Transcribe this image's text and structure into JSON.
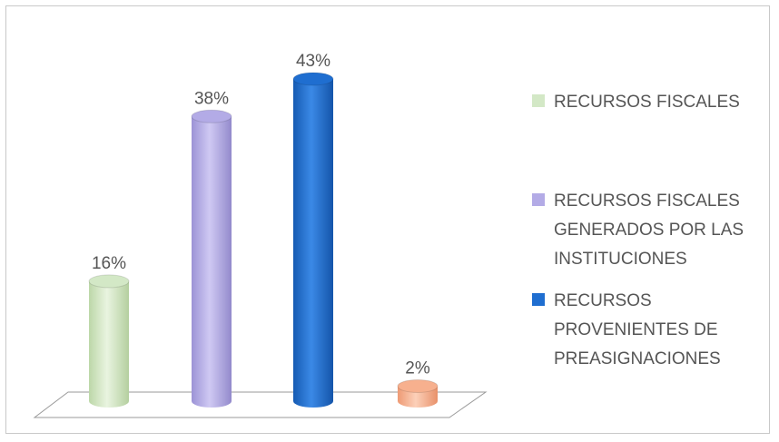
{
  "chart_data": {
    "type": "bar",
    "categories": [
      "RECURSOS FISCALES",
      "RECURSOS FISCALES GENERADOS POR LAS INSTITUCIONES",
      "RECURSOS PROVENIENTES DE PREASIGNACIONES",
      ""
    ],
    "values": [
      16,
      38,
      43,
      2
    ],
    "data_labels": [
      "16%",
      "38%",
      "43%",
      "2%"
    ],
    "title": "",
    "xlabel": "",
    "ylabel": "",
    "ylim": [
      0,
      45
    ],
    "grid": false,
    "legend_position": "right",
    "colors": [
      "#d3e8c6",
      "#b3abe6",
      "#1f6ed0",
      "#f7b08e"
    ],
    "legend": [
      {
        "lines": [
          "RECURSOS FISCALES"
        ],
        "color": "#d3e8c6"
      },
      {
        "lines": [
          "RECURSOS FISCALES",
          "GENERADOS POR LAS",
          "INSTITUCIONES"
        ],
        "color": "#b3abe6"
      },
      {
        "lines": [
          "RECURSOS",
          "PROVENIENTES DE",
          "PREASIGNACIONES"
        ],
        "color": "#1f6ed0"
      }
    ]
  }
}
